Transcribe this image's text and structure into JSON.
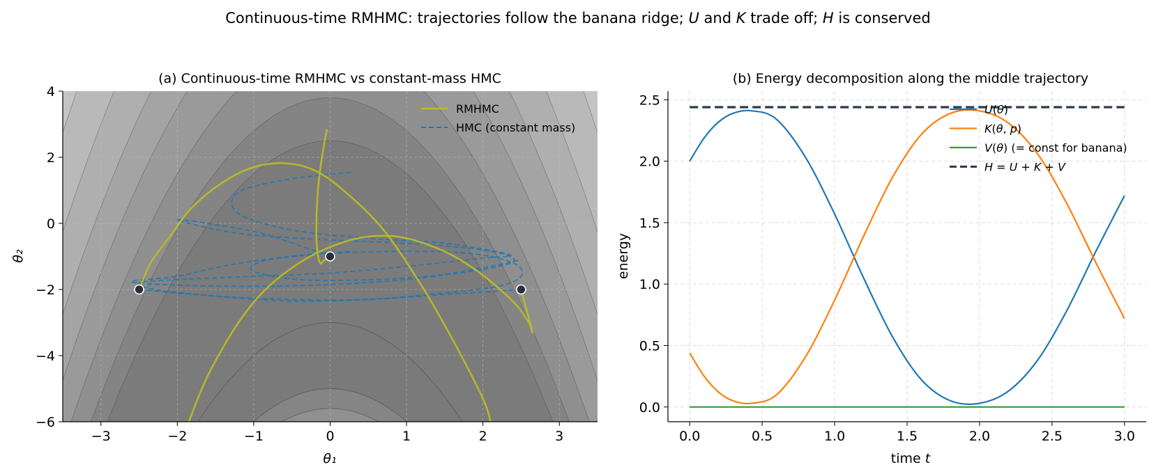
{
  "figure": {
    "suptitle_parts": [
      {
        "t": "Continuous-time RMHMC: trajectories follow the banana ridge; ",
        "i": false
      },
      {
        "t": "U",
        "i": true
      },
      {
        "t": " and ",
        "i": false
      },
      {
        "t": "K",
        "i": true
      },
      {
        "t": " trade off; ",
        "i": false
      },
      {
        "t": "H",
        "i": true
      },
      {
        "t": " is conserved",
        "i": false
      }
    ]
  },
  "chart_data": [
    {
      "type": "line",
      "title": "(a) Continuous-time RMHMC vs constant-mass HMC",
      "xlabel": "θ₁",
      "ylabel": "θ₂",
      "xlim": [
        -3.5,
        3.5
      ],
      "ylim": [
        -6,
        4
      ],
      "xticks": [
        -3,
        -2,
        -1,
        0,
        1,
        2,
        3
      ],
      "yticks": [
        -6,
        -4,
        -2,
        0,
        2,
        4
      ],
      "grid": true,
      "background": "filled grayscale contours of a banana-shaped density (ridge θ₂ ≈ −θ₁²)",
      "legend_position": "top-right",
      "colors": {
        "rmhmc": "#bcbd22",
        "hmc": "#1f77b4",
        "start_marker": "#2b2f3a"
      },
      "series": [
        {
          "name": "RMHMC",
          "style": "solid",
          "trajectories": [
            {
              "x": [
                -2.5,
                -2.35,
                -2.1,
                -1.8,
                -1.4,
                -1.0,
                -0.6,
                -0.2,
                0.2,
                0.7,
                1.2,
                1.6,
                2.0,
                2.1
              ],
              "y": [
                -2.0,
                -1.2,
                -0.4,
                0.5,
                1.25,
                1.7,
                1.82,
                1.6,
                0.95,
                -0.2,
                -1.9,
                -3.5,
                -5.3,
                -6.0
              ]
            },
            {
              "x": [
                -1.85,
                -1.6,
                -1.2,
                -0.8,
                -0.3,
                0.2,
                0.6,
                1.0,
                1.5,
                1.9,
                2.2,
                2.45,
                2.6,
                2.65,
                2.58,
                2.5
              ],
              "y": [
                -6.0,
                -4.6,
                -3.0,
                -1.9,
                -1.05,
                -0.55,
                -0.38,
                -0.45,
                -0.85,
                -1.4,
                -1.95,
                -2.5,
                -3.0,
                -3.3,
                -2.7,
                -2.0
              ]
            },
            {
              "x": [
                0.0,
                -0.08,
                -0.13,
                -0.17,
                -0.18,
                -0.16,
                -0.12,
                -0.07,
                -0.04
              ],
              "y": [
                -1.0,
                -1.12,
                -1.2,
                -0.8,
                0.0,
                1.0,
                1.8,
                2.5,
                2.85
              ]
            }
          ]
        },
        {
          "name": "HMC (constant mass)",
          "style": "dashed",
          "trajectories": [
            {
              "x": [
                -2.5,
                -1.5,
                -0.5,
                0.5,
                1.5,
                2.2,
                2.5,
                2.4,
                1.8,
                0.8,
                -0.3,
                -1.3,
                -2.0,
                -2.6,
                -2.2,
                -1.2,
                0.0,
                1.2,
                2.2,
                2.5
              ],
              "y": [
                -2.0,
                -2.2,
                -2.3,
                -2.3,
                -2.1,
                -1.9,
                -1.6,
                -1.2,
                -0.9,
                -0.85,
                -0.95,
                -1.25,
                -1.6,
                -1.75,
                -1.85,
                -1.9,
                -1.85,
                -1.65,
                -1.25,
                -1.1
              ]
            },
            {
              "x": [
                2.5,
                1.5,
                0.5,
                -0.5,
                -1.5,
                -2.3,
                -2.5,
                -2.0,
                -1.0,
                0.0,
                1.0,
                2.0,
                2.35,
                1.5,
                0.5,
                -0.5,
                -1.2,
                -1.2,
                -0.5,
                0.3
              ],
              "y": [
                -2.0,
                -2.15,
                -2.3,
                -2.35,
                -2.2,
                -2.0,
                -1.8,
                -1.7,
                -1.6,
                -1.5,
                -1.3,
                -1.05,
                -0.95,
                -0.6,
                -0.45,
                -0.2,
                0.3,
                0.95,
                1.35,
                1.55
              ]
            },
            {
              "x": [
                0.0,
                -0.3,
                -0.9,
                -1.6,
                -2.0,
                -1.2,
                0.0,
                1.0,
                1.8,
                2.3,
                2.4,
                2.1,
                1.5,
                0.6,
                -0.4,
                -1.0,
                -0.9,
                -0.3,
                0.3
              ],
              "y": [
                -1.0,
                -0.75,
                -0.3,
                0.0,
                0.1,
                -0.3,
                -0.5,
                -0.6,
                -0.75,
                -0.95,
                -1.15,
                -1.35,
                -1.55,
                -1.7,
                -1.7,
                -1.45,
                -1.15,
                -0.95,
                -0.85
              ]
            }
          ]
        }
      ],
      "start_points": {
        "x": [
          -2.5,
          0.0,
          2.5
        ],
        "y": [
          -2.0,
          -1.0,
          -2.0
        ]
      }
    },
    {
      "type": "line",
      "title": "(b) Energy decomposition along the middle trajectory",
      "xlabel_parts": [
        {
          "t": "time ",
          "i": false
        },
        {
          "t": "t",
          "i": true
        }
      ],
      "ylabel": "energy",
      "xlim": [
        -0.15,
        3.15
      ],
      "ylim": [
        -0.12,
        2.57
      ],
      "xticks": [
        0.0,
        0.5,
        1.0,
        1.5,
        2.0,
        2.5,
        3.0
      ],
      "yticks": [
        0.0,
        0.5,
        1.0,
        1.5,
        2.0,
        2.5
      ],
      "grid": true,
      "legend_position": "top-right",
      "x": [
        0.0,
        0.1,
        0.2,
        0.3,
        0.43,
        0.6,
        0.8,
        1.0,
        1.2,
        1.4,
        1.6,
        1.8,
        2.0,
        2.2,
        2.4,
        2.6,
        2.8,
        3.0
      ],
      "series": [
        {
          "name_parts": [
            {
              "t": "U",
              "i": true
            },
            {
              "t": "(",
              "i": false
            },
            {
              "t": "θ",
              "i": true
            },
            {
              "t": ")",
              "i": false
            }
          ],
          "color": "#1f77b4",
          "style": "solid",
          "values": [
            2.0,
            2.19,
            2.32,
            2.39,
            2.41,
            2.34,
            2.03,
            1.57,
            1.05,
            0.57,
            0.22,
            0.05,
            0.03,
            0.13,
            0.38,
            0.78,
            1.26,
            1.72
          ]
        },
        {
          "name_parts": [
            {
              "t": "K",
              "i": true
            },
            {
              "t": "(",
              "i": false
            },
            {
              "t": "θ",
              "i": true
            },
            {
              "t": ", ",
              "i": false
            },
            {
              "t": "p",
              "i": true
            },
            {
              "t": ")",
              "i": false
            }
          ],
          "color": "#ff7f0e",
          "style": "solid",
          "values": [
            0.44,
            0.25,
            0.12,
            0.05,
            0.03,
            0.1,
            0.41,
            0.87,
            1.39,
            1.87,
            2.22,
            2.39,
            2.41,
            2.31,
            2.06,
            1.66,
            1.18,
            0.72
          ]
        },
        {
          "name_parts": [
            {
              "t": "V",
              "i": true
            },
            {
              "t": "(",
              "i": false
            },
            {
              "t": "θ",
              "i": true
            },
            {
              "t": ") (= const for banana)",
              "i": false
            }
          ],
          "color": "#2ca02c",
          "style": "solid",
          "values": [
            0.0,
            0.0,
            0.0,
            0.0,
            0.0,
            0.0,
            0.0,
            0.0,
            0.0,
            0.0,
            0.0,
            0.0,
            0.0,
            0.0,
            0.0,
            0.0,
            0.0,
            0.0
          ]
        },
        {
          "name_parts": [
            {
              "t": "H",
              "i": true
            },
            {
              "t": " = ",
              "i": false
            },
            {
              "t": "U",
              "i": true
            },
            {
              "t": " + ",
              "i": false
            },
            {
              "t": "K",
              "i": true
            },
            {
              "t": " + ",
              "i": false
            },
            {
              "t": "V",
              "i": true
            }
          ],
          "color": "#2b3a4f",
          "style": "dashed",
          "values": [
            2.44,
            2.44,
            2.44,
            2.44,
            2.44,
            2.44,
            2.44,
            2.44,
            2.44,
            2.44,
            2.44,
            2.44,
            2.44,
            2.44,
            2.44,
            2.44,
            2.44,
            2.44
          ]
        }
      ]
    }
  ]
}
